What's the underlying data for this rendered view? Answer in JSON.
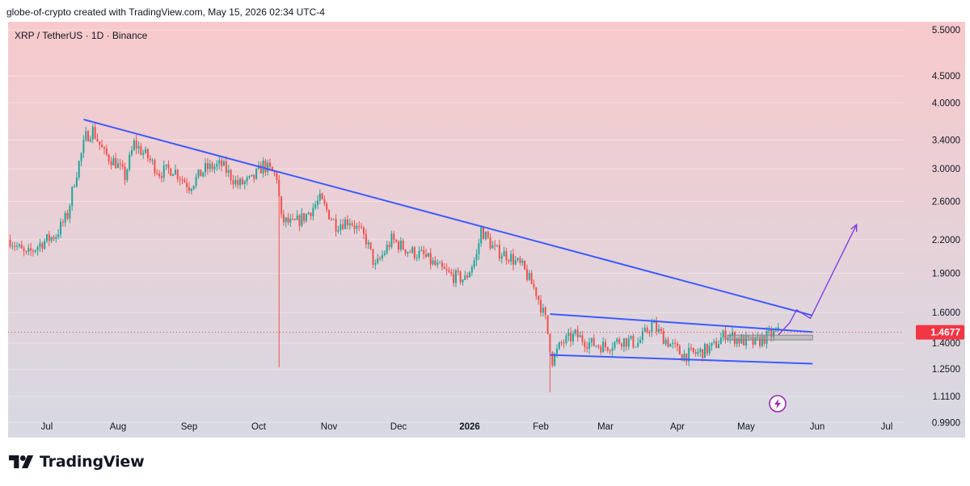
{
  "caption": "globe-of-crypto created with TradingView.com, May 15, 2026 02:34 UTC-4",
  "symbol": "XRP / TetherUS · 1D · Binance",
  "brand": "TradingView",
  "icons": {
    "brand_logo": "tradingview-logo-icon",
    "lightning": "lightning-icon"
  },
  "colors": {
    "bg_top": "#f7c9cc",
    "bg_bottom": "#d7d9e3",
    "candle_up": "#26a69a",
    "candle_down": "#ef5350",
    "trendline": "#3d5afe",
    "projection": "#7b3fe4",
    "price_tag": "#f23645",
    "lightning": "#9c27b0"
  },
  "chart_data": {
    "type": "candlestick",
    "y_scale": "log",
    "ylim": [
      0.95,
      5.7
    ],
    "y_ticks": [
      "5.5000",
      "4.5000",
      "4.0000",
      "3.4000",
      "3.0000",
      "2.6000",
      "2.2000",
      "1.9000",
      "1.6000",
      "1.4000",
      "1.2500",
      "1.1100",
      "0.9900"
    ],
    "x_ticks": [
      "Jul",
      "Aug",
      "Sep",
      "Oct",
      "Nov",
      "Dec",
      "2026",
      "Feb",
      "Mar",
      "Apr",
      "May",
      "Jun",
      "Jul"
    ],
    "last_price": "1.4677",
    "series_path": [
      [
        "2025-06-15",
        2.2
      ],
      [
        "2025-06-22",
        2.05
      ],
      [
        "2025-06-28",
        2.16
      ],
      [
        "2025-07-05",
        2.25
      ],
      [
        "2025-07-10",
        2.45
      ],
      [
        "2025-07-13",
        2.85
      ],
      [
        "2025-07-18",
        3.45
      ],
      [
        "2025-07-21",
        3.55
      ],
      [
        "2025-07-26",
        3.2
      ],
      [
        "2025-07-31",
        3.08
      ],
      [
        "2025-08-04",
        2.9
      ],
      [
        "2025-08-08",
        3.35
      ],
      [
        "2025-08-14",
        3.15
      ],
      [
        "2025-08-19",
        2.95
      ],
      [
        "2025-08-25",
        3.0
      ],
      [
        "2025-09-01",
        2.78
      ],
      [
        "2025-09-08",
        3.0
      ],
      [
        "2025-09-15",
        3.05
      ],
      [
        "2025-09-22",
        2.8
      ],
      [
        "2025-09-28",
        2.85
      ],
      [
        "2025-10-03",
        3.05
      ],
      [
        "2025-10-09",
        2.9
      ],
      [
        "2025-10-11",
        2.4
      ],
      [
        "2025-10-16",
        2.35
      ],
      [
        "2025-10-22",
        2.45
      ],
      [
        "2025-10-28",
        2.62
      ],
      [
        "2025-11-04",
        2.35
      ],
      [
        "2025-11-10",
        2.4
      ],
      [
        "2025-11-17",
        2.2
      ],
      [
        "2025-11-21",
        1.95
      ],
      [
        "2025-11-28",
        2.2
      ],
      [
        "2025-12-05",
        2.1
      ],
      [
        "2025-12-12",
        2.05
      ],
      [
        "2025-12-18",
        1.95
      ],
      [
        "2025-12-24",
        1.88
      ],
      [
        "2025-12-30",
        1.85
      ],
      [
        "2026-01-04",
        2.05
      ],
      [
        "2026-01-06",
        2.3
      ],
      [
        "2026-01-12",
        2.1
      ],
      [
        "2026-01-18",
        2.05
      ],
      [
        "2026-01-24",
        1.95
      ],
      [
        "2026-01-30",
        1.75
      ],
      [
        "2026-02-03",
        1.55
      ],
      [
        "2026-02-06",
        1.3
      ],
      [
        "2026-02-10",
        1.4
      ],
      [
        "2026-02-16",
        1.45
      ],
      [
        "2026-02-22",
        1.4
      ],
      [
        "2026-03-01",
        1.38
      ],
      [
        "2026-03-08",
        1.42
      ],
      [
        "2026-03-15",
        1.4
      ],
      [
        "2026-03-21",
        1.52
      ],
      [
        "2026-03-27",
        1.42
      ],
      [
        "2026-04-03",
        1.33
      ],
      [
        "2026-04-10",
        1.34
      ],
      [
        "2026-04-17",
        1.38
      ],
      [
        "2026-04-22",
        1.46
      ],
      [
        "2026-04-28",
        1.42
      ],
      [
        "2026-05-05",
        1.4
      ],
      [
        "2026-05-10",
        1.44
      ],
      [
        "2026-05-15",
        1.4677
      ]
    ],
    "anomalies": [
      {
        "date": "2025-10-10",
        "low": 1.26
      },
      {
        "date": "2026-02-05",
        "low": 1.13
      }
    ],
    "annotations": {
      "descending_trendline": [
        [
          "2025-07-17",
          3.72
        ],
        [
          "2026-05-30",
          1.58
        ]
      ],
      "channel_upper": [
        [
          "2026-02-05",
          1.59
        ],
        [
          "2026-05-30",
          1.47
        ]
      ],
      "channel_lower": [
        [
          "2026-02-05",
          1.33
        ],
        [
          "2026-05-30",
          1.28
        ]
      ],
      "projection_path": [
        [
          "2026-05-15",
          1.45
        ],
        [
          "2026-05-20",
          1.53
        ],
        [
          "2026-05-23",
          1.62
        ],
        [
          "2026-05-29",
          1.56
        ],
        [
          "2026-06-18",
          2.35
        ]
      ],
      "box": [
        [
          "2026-04-23",
          1.45
        ],
        [
          "2026-05-30",
          1.42
        ]
      ]
    }
  }
}
